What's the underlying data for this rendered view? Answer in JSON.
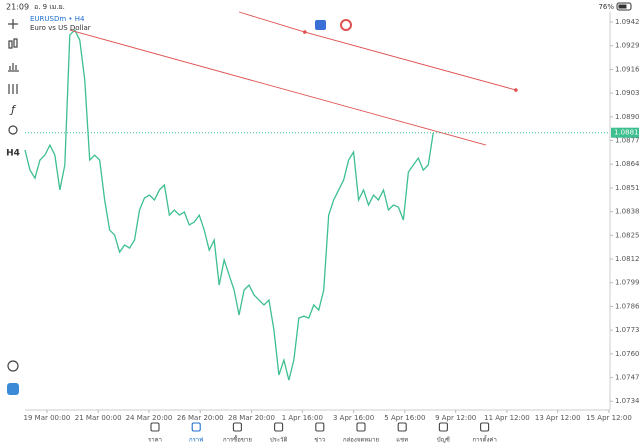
{
  "status_bar": {
    "time": "21:09",
    "date": "อ. 9 เม.ย.",
    "battery": "76%"
  },
  "toolbar": {
    "timeframe": "H4"
  },
  "chart_data": {
    "type": "line",
    "title": "EURUSDm • H4",
    "subtitle": "Euro vs US Dollar",
    "series": [
      {
        "name": "EURUSDm",
        "color": "#3dbf8f",
        "values": [
          1.08718,
          1.08608,
          1.08564,
          1.08663,
          1.0869,
          1.08745,
          1.0869,
          1.08499,
          1.08636,
          1.09349,
          1.09376,
          1.09321,
          1.09102,
          1.08663,
          1.0869,
          1.08663,
          1.08444,
          1.08279,
          1.08252,
          1.08158,
          1.08197,
          1.0818,
          1.08224,
          1.08389,
          1.08455,
          1.08471,
          1.08444,
          1.08499,
          1.08526,
          1.08361,
          1.08389,
          1.08361,
          1.08378,
          1.08307,
          1.08323,
          1.08361,
          1.08279,
          1.08169,
          1.08224,
          1.07977,
          1.08115,
          1.08032,
          1.0795,
          1.07813,
          1.0795,
          1.07977,
          1.07923,
          1.07895,
          1.07868,
          1.07895,
          1.07731,
          1.07484,
          1.07566,
          1.07456,
          1.07566,
          1.07796,
          1.07807,
          1.07796,
          1.07868,
          1.0784,
          1.0795,
          1.08361,
          1.08444,
          1.08499,
          1.08553,
          1.08663,
          1.08707,
          1.08444,
          1.08499,
          1.08416,
          1.08471,
          1.08444,
          1.08499,
          1.08389,
          1.08416,
          1.08405,
          1.08334,
          1.08597,
          1.08636,
          1.08674,
          1.08608,
          1.08636,
          1.08813
        ]
      }
    ],
    "current_price": 1.08813,
    "current_price_color": "#3dbf8f",
    "trendlines": [
      {
        "color": "#e05050",
        "points": [
          [
            9,
            1.09376
          ],
          [
            92.6,
            1.08745
          ]
        ],
        "anchors": false
      },
      {
        "color": "#e05050",
        "points": [
          [
            43,
            1.09475
          ],
          [
            56.2,
            1.09365
          ],
          [
            98.6,
            1.09047
          ]
        ],
        "anchors": true
      }
    ],
    "xlim": [
      0,
      117.5
    ],
    "ylim": [
      1.07292,
      1.09475
    ],
    "xticks": [
      {
        "value": 4.4,
        "label": "19 Mar 00:00"
      },
      {
        "value": 14.7,
        "label": "21 Mar 00:00"
      },
      {
        "value": 24.9,
        "label": "24 Mar 20:00"
      },
      {
        "value": 35.2,
        "label": "26 Mar 20:00"
      },
      {
        "value": 45.5,
        "label": "28 Mar 20:00"
      },
      {
        "value": 55.7,
        "label": "1 Apr 16:00"
      },
      {
        "value": 66,
        "label": "3 Apr 16:00"
      },
      {
        "value": 76.3,
        "label": "5 Apr 16:00"
      },
      {
        "value": 86.5,
        "label": "9 Apr 12:00"
      },
      {
        "value": 96.8,
        "label": "11 Apr 12:00"
      },
      {
        "value": 107,
        "label": "13 Apr 12:00"
      },
      {
        "value": 117.3,
        "label": "15 Apr 12:00"
      }
    ],
    "yticks": [
      {
        "value": 1.0942,
        "label": "1.09420"
      },
      {
        "value": 1.0929,
        "label": "1.09290"
      },
      {
        "value": 1.0916,
        "label": "1.09160"
      },
      {
        "value": 1.0903,
        "label": "1.09030"
      },
      {
        "value": 1.089,
        "label": "1.08900"
      },
      {
        "value": 1.0877,
        "label": "1.08770"
      },
      {
        "value": 1.0864,
        "label": "1.08640"
      },
      {
        "value": 1.0851,
        "label": "1.08510"
      },
      {
        "value": 1.0838,
        "label": "1.08380"
      },
      {
        "value": 1.0825,
        "label": "1.08250"
      },
      {
        "value": 1.0812,
        "label": "1.08120"
      },
      {
        "value": 1.0799,
        "label": "1.07990"
      },
      {
        "value": 1.0786,
        "label": "1.07860"
      },
      {
        "value": 1.0773,
        "label": "1.07730"
      },
      {
        "value": 1.076,
        "label": "1.07600"
      },
      {
        "value": 1.0747,
        "label": "1.07470"
      },
      {
        "value": 1.0734,
        "label": "1.07340"
      }
    ],
    "grid": false
  },
  "nav": {
    "active": 1,
    "items": [
      "ราคา",
      "กราฟ",
      "การซื้อขาย",
      "ประวัติ",
      "ข่าว",
      "กล่องจดหมาย",
      "แชท",
      "บัญชี",
      "การตั้งค่า"
    ]
  }
}
